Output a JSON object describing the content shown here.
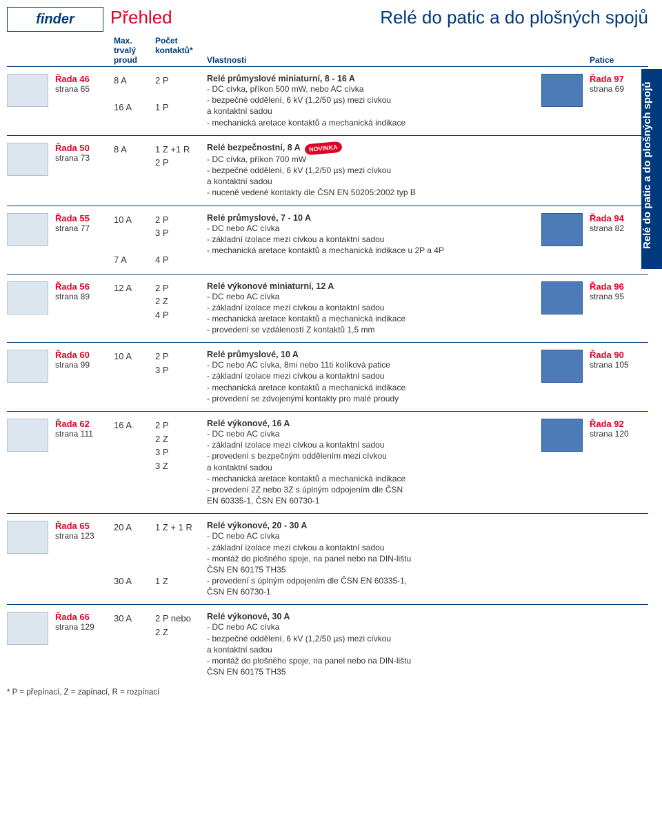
{
  "logo_text": "finder",
  "header_left": "Přehled",
  "header_right": "Relé do patic a do plošných spojů",
  "side_tab": "Relé do patic a do plošných spojů",
  "columns": {
    "amp_l1": "Max.",
    "amp_l2": "trvalý",
    "amp_l3": "proud",
    "cont_l1": "Počet",
    "cont_l2": "kontaktů*",
    "desc": "Vlastnosti",
    "sock": "Patice"
  },
  "rows": [
    {
      "series": "Řada 46",
      "series_page": "strana 65",
      "amp": "8 A\n\n16 A",
      "cont": "2 P\n\n1 P",
      "desc_title": "Relé průmyslové miniaturní, 8 - 16 A",
      "desc_lines": "- DC cívka, příkon 500 mW, nebo AC cívka\n- bezpečné oddělení, 6 kV (1,2/50 µs) mezi cívkou\n  a kontaktní sadou\n- mechanická aretace kontaktů a mechanická indikace",
      "socket": "Řada 97",
      "socket_page": "strana 69",
      "novinka": false,
      "has_socket_img": true
    },
    {
      "series": "Řada 50",
      "series_page": "strana 73",
      "amp": "8 A",
      "cont": "1 Z +1 R\n2 P",
      "desc_title": "Relé bezpečnostní, 8 A",
      "desc_lines": "- DC cívka, příkon 700 mW\n- bezpečné oddělení, 6 kV (1,2/50 µs) mezi cívkou\n  a kontaktní sadou\n- nuceně vedené kontakty dle ČSN EN 50205:2002 typ B",
      "socket": "",
      "socket_page": "",
      "novinka": true,
      "has_socket_img": false
    },
    {
      "series": "Řada 55",
      "series_page": "strana 77",
      "amp": "10 A\n\n\n7 A",
      "cont": "2 P\n3 P\n\n4 P",
      "desc_title": "Relé průmyslové, 7 - 10 A",
      "desc_lines": "- DC nebo AC cívka\n- základní izolace mezi cívkou a kontaktní sadou\n- mechanická aretace kontaktů a mechanická indikace u 2P a 4P",
      "socket": "Řada 94",
      "socket_page": "strana 82",
      "novinka": false,
      "has_socket_img": true
    },
    {
      "series": "Řada 56",
      "series_page": "strana 89",
      "amp": "12 A",
      "cont": "2 P\n2 Z\n4 P",
      "desc_title": "Relé výkonové miniaturní, 12 A",
      "desc_lines": "- DC nebo AC cívka\n- základní izolace mezi cívkou a kontaktní sadou\n- mechanická aretace kontaktů a mechanická indikace\n- provedení se vzdáleností Z kontaktů 1,5 mm",
      "socket": "Řada 96",
      "socket_page": "strana 95",
      "novinka": false,
      "has_socket_img": true
    },
    {
      "series": "Řada 60",
      "series_page": "strana 99",
      "amp": "10 A",
      "cont": "2 P\n3 P",
      "desc_title": "Relé průmyslové, 10 A",
      "desc_lines": "- DC nebo AC cívka, 8mi nebo 11ti kolíková patice\n- základní izolace mezi cívkou a kontaktní sadou\n- mechanická aretace kontaktů a mechanická indikace\n- provedení se zdvojenými kontakty pro malé proudy",
      "socket": "Řada 90",
      "socket_page": "strana 105",
      "novinka": false,
      "has_socket_img": true
    },
    {
      "series": "Řada 62",
      "series_page": "strana 111",
      "amp": "16 A",
      "cont": "2 P\n2 Z\n3 P\n3 Z",
      "desc_title": "Relé výkonové, 16 A",
      "desc_lines": "- DC nebo AC cívka\n- základní izolace mezi cívkou a kontaktní sadou\n- provedení s bezpečným oddělením mezi cívkou\n  a kontaktní sadou\n- mechanická aretace kontaktů a mechanická indikace\n- provedení 2Z nebo 3Z s úplným odpojením dle ČSN\n  EN 60335-1, ČSN EN 60730-1",
      "socket": "Řada 92",
      "socket_page": "strana 120",
      "novinka": false,
      "has_socket_img": true
    },
    {
      "series": "Řada 65",
      "series_page": "strana 123",
      "amp": "20 A\n\n\n\n30 A",
      "cont": "1 Z + 1 R\n\n\n\n1 Z",
      "desc_title": "Relé výkonové, 20 - 30 A",
      "desc_lines": "- DC nebo AC cívka\n- základní izolace mezi cívkou a kontaktní sadou\n- montáž do plošného spoje, na panel nebo na DIN-lištu\n  ČSN EN 60175 TH35\n- provedení s úplným odpojením dle ČSN EN 60335-1,\n  ČSN EN 60730-1",
      "socket": "",
      "socket_page": "",
      "novinka": false,
      "has_socket_img": false
    },
    {
      "series": "Řada 66",
      "series_page": "strana 129",
      "amp": "30 A",
      "cont": "2 P nebo\n2 Z",
      "desc_title": "Relé výkonové, 30 A",
      "desc_lines": "- DC nebo AC cívka\n- bezpečné oddělení, 6 kV (1,2/50 µs) mezi cívkou\n  a kontaktní sadou\n- montáž do plošného spoje, na panel nebo na DIN-lištu\n  ČSN EN 60175 TH35",
      "socket": "",
      "socket_page": "",
      "novinka": false,
      "has_socket_img": false
    }
  ],
  "footnote": "* P = přepínací, Z = zapínací, R = rozpínací",
  "novinka_label": "NOVINKA"
}
